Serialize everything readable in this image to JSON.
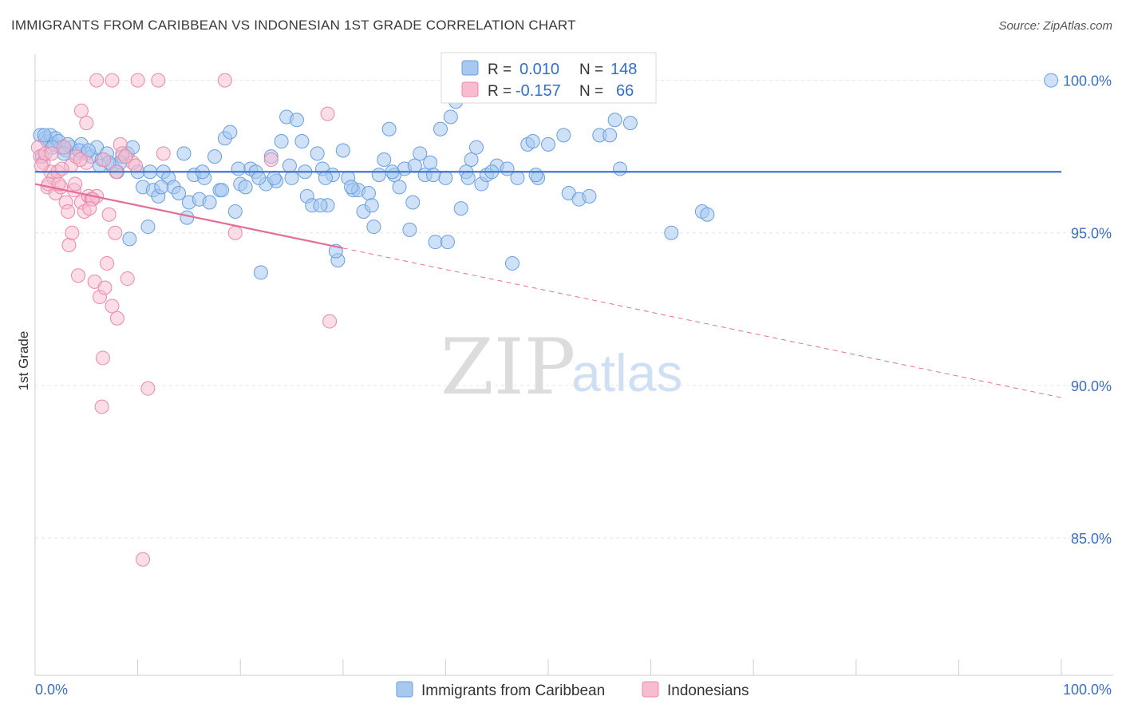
{
  "title": "IMMIGRANTS FROM CARIBBEAN VS INDONESIAN 1ST GRADE CORRELATION CHART",
  "source": "Source: ZipAtlas.com",
  "watermark": {
    "part1": "ZIP",
    "part2": "atlas"
  },
  "legend": {
    "r_label": "R =",
    "n_label": "N =",
    "rows": [
      {
        "r": "0.010",
        "n": "148",
        "color": "#a8c8f0",
        "stroke": "#6a9ee0"
      },
      {
        "r": "-0.157",
        "n": "66",
        "color": "#f8bcd0",
        "stroke": "#ec88a8"
      }
    ]
  },
  "colors": {
    "blue": "#3b78d8",
    "pink": "#e46c98",
    "grid": "#e6e6e6",
    "axis_text": "#3b6fc4"
  },
  "chart_data": {
    "type": "scatter",
    "title": "IMMIGRANTS FROM CARIBBEAN VS INDONESIAN 1ST GRADE CORRELATION CHART",
    "xlabel": "",
    "ylabel": "1st Grade",
    "xlim": [
      0,
      100
    ],
    "ylim": [
      80.5,
      100.8
    ],
    "x_tick_labels": [
      "0.0%",
      "100.0%"
    ],
    "y_ticks": [
      85,
      90,
      95,
      100
    ],
    "y_tick_labels": [
      "85.0%",
      "90.0%",
      "95.0%",
      "100.0%"
    ],
    "grid": true,
    "legend_placement": "top-center",
    "series": [
      {
        "name": "Immigrants from Caribbean",
        "color": "#a8c8f0",
        "trend": {
          "x": [
            0,
            100
          ],
          "y": [
            97.0,
            97.0
          ]
        },
        "points": [
          [
            0.5,
            98.2
          ],
          [
            1.0,
            98.1
          ],
          [
            1.2,
            98.0
          ],
          [
            1.5,
            98.2
          ],
          [
            1.8,
            97.9
          ],
          [
            2.0,
            98.1
          ],
          [
            2.5,
            97.8
          ],
          [
            3.0,
            97.7
          ],
          [
            3.5,
            97.8
          ],
          [
            4.0,
            97.6
          ],
          [
            4.5,
            97.9
          ],
          [
            5.0,
            97.6
          ],
          [
            5.5,
            97.5
          ],
          [
            6.0,
            97.8
          ],
          [
            6.5,
            97.4
          ],
          [
            7.0,
            97.6
          ],
          [
            7.5,
            97.2
          ],
          [
            8.0,
            97.0
          ],
          [
            8.5,
            97.5
          ],
          [
            9.0,
            97.6
          ],
          [
            9.5,
            97.8
          ],
          [
            10.0,
            97.0
          ],
          [
            10.5,
            96.5
          ],
          [
            11.0,
            95.2
          ],
          [
            11.5,
            96.4
          ],
          [
            12.0,
            96.2
          ],
          [
            12.5,
            97.0
          ],
          [
            13.0,
            96.8
          ],
          [
            13.5,
            96.5
          ],
          [
            14.0,
            96.3
          ],
          [
            14.5,
            97.6
          ],
          [
            15.0,
            96.0
          ],
          [
            15.5,
            96.9
          ],
          [
            16.0,
            96.1
          ],
          [
            16.5,
            96.8
          ],
          [
            17.0,
            96.0
          ],
          [
            17.5,
            97.5
          ],
          [
            18.0,
            96.4
          ],
          [
            18.5,
            98.1
          ],
          [
            19.0,
            98.3
          ],
          [
            19.5,
            95.7
          ],
          [
            20.0,
            96.6
          ],
          [
            20.5,
            96.5
          ],
          [
            21.0,
            97.1
          ],
          [
            21.5,
            97.0
          ],
          [
            22.0,
            93.7
          ],
          [
            22.5,
            96.6
          ],
          [
            23.0,
            97.5
          ],
          [
            23.5,
            96.7
          ],
          [
            24.0,
            98.0
          ],
          [
            24.5,
            98.8
          ],
          [
            25.0,
            96.8
          ],
          [
            25.5,
            98.7
          ],
          [
            26.0,
            98.0
          ],
          [
            26.5,
            96.2
          ],
          [
            27.0,
            95.9
          ],
          [
            27.5,
            97.6
          ],
          [
            28.0,
            97.1
          ],
          [
            28.5,
            95.9
          ],
          [
            29.0,
            96.9
          ],
          [
            29.5,
            94.1
          ],
          [
            30.0,
            97.7
          ],
          [
            30.5,
            96.8
          ],
          [
            31.0,
            96.4
          ],
          [
            31.5,
            96.4
          ],
          [
            32.0,
            95.7
          ],
          [
            32.5,
            96.3
          ],
          [
            33.0,
            95.2
          ],
          [
            33.5,
            96.9
          ],
          [
            34.0,
            97.4
          ],
          [
            34.5,
            98.4
          ],
          [
            35.0,
            96.9
          ],
          [
            35.5,
            96.5
          ],
          [
            36.0,
            97.1
          ],
          [
            36.5,
            95.1
          ],
          [
            37.0,
            97.2
          ],
          [
            37.5,
            97.6
          ],
          [
            38.0,
            96.9
          ],
          [
            38.5,
            97.3
          ],
          [
            39.0,
            94.7
          ],
          [
            39.5,
            98.4
          ],
          [
            40.0,
            96.8
          ],
          [
            40.5,
            98.8
          ],
          [
            41.0,
            99.3
          ],
          [
            41.5,
            95.8
          ],
          [
            42.0,
            97.0
          ],
          [
            42.5,
            97.4
          ],
          [
            43.0,
            97.8
          ],
          [
            43.5,
            96.6
          ],
          [
            44.0,
            96.9
          ],
          [
            45.0,
            97.2
          ],
          [
            46.0,
            97.1
          ],
          [
            47.0,
            96.8
          ],
          [
            48.0,
            97.9
          ],
          [
            48.5,
            98.0
          ],
          [
            49.0,
            96.8
          ],
          [
            50.0,
            97.9
          ],
          [
            50.5,
            100.0
          ],
          [
            52.0,
            96.3
          ],
          [
            53.0,
            96.1
          ],
          [
            55.0,
            98.2
          ],
          [
            56.0,
            98.2
          ],
          [
            57.0,
            97.1
          ],
          [
            58.0,
            98.6
          ],
          [
            62.0,
            95.0
          ],
          [
            65.0,
            95.7
          ],
          [
            65.5,
            95.6
          ],
          [
            99.0,
            100.0
          ],
          [
            0.7,
            97.5
          ],
          [
            2.3,
            98.0
          ],
          [
            3.2,
            97.9
          ],
          [
            4.3,
            97.7
          ],
          [
            6.3,
            97.2
          ],
          [
            8.3,
            97.3
          ],
          [
            9.2,
            94.8
          ],
          [
            12.3,
            96.5
          ],
          [
            14.8,
            95.5
          ],
          [
            16.3,
            97.0
          ],
          [
            18.2,
            96.4
          ],
          [
            19.8,
            97.1
          ],
          [
            21.8,
            96.8
          ],
          [
            23.3,
            96.8
          ],
          [
            24.8,
            97.2
          ],
          [
            26.3,
            97.0
          ],
          [
            27.8,
            95.9
          ],
          [
            28.3,
            96.8
          ],
          [
            29.3,
            94.4
          ],
          [
            30.8,
            96.5
          ],
          [
            32.8,
            95.9
          ],
          [
            34.8,
            97.0
          ],
          [
            36.8,
            96.0
          ],
          [
            38.8,
            96.9
          ],
          [
            40.2,
            94.7
          ],
          [
            42.2,
            96.8
          ],
          [
            44.5,
            97.0
          ],
          [
            46.5,
            94.0
          ],
          [
            48.8,
            96.9
          ],
          [
            51.5,
            98.2
          ],
          [
            54.0,
            96.2
          ],
          [
            56.5,
            98.7
          ],
          [
            0.9,
            98.2
          ],
          [
            1.7,
            97.8
          ],
          [
            2.8,
            97.6
          ],
          [
            5.2,
            97.7
          ],
          [
            7.2,
            97.3
          ],
          [
            11.2,
            97.0
          ]
        ]
      },
      {
        "name": "Indonesians",
        "color": "#f8bcd0",
        "trend": {
          "x": [
            0,
            30
          ],
          "y": [
            96.6,
            94.5
          ]
        },
        "trend_dashed": {
          "x": [
            30,
            100
          ],
          "y": [
            94.5,
            89.6
          ]
        },
        "points": [
          [
            0.3,
            97.8
          ],
          [
            0.5,
            97.5
          ],
          [
            0.8,
            97.3
          ],
          [
            1.0,
            97.6
          ],
          [
            1.2,
            96.5
          ],
          [
            1.5,
            97.0
          ],
          [
            1.8,
            96.8
          ],
          [
            2.0,
            96.3
          ],
          [
            2.2,
            97.0
          ],
          [
            2.5,
            96.5
          ],
          [
            2.8,
            97.8
          ],
          [
            3.0,
            96.0
          ],
          [
            3.2,
            95.7
          ],
          [
            3.5,
            97.2
          ],
          [
            3.8,
            96.4
          ],
          [
            4.0,
            97.5
          ],
          [
            4.2,
            93.6
          ],
          [
            4.5,
            96.0
          ],
          [
            4.8,
            95.7
          ],
          [
            5.0,
            97.3
          ],
          [
            5.2,
            96.2
          ],
          [
            5.5,
            96.1
          ],
          [
            5.8,
            93.4
          ],
          [
            6.0,
            96.2
          ],
          [
            6.3,
            92.9
          ],
          [
            6.6,
            90.9
          ],
          [
            6.8,
            93.2
          ],
          [
            7.0,
            94.0
          ],
          [
            7.2,
            95.6
          ],
          [
            7.5,
            92.6
          ],
          [
            7.8,
            95.0
          ],
          [
            8.0,
            92.2
          ],
          [
            8.3,
            97.9
          ],
          [
            8.5,
            97.6
          ],
          [
            9.0,
            93.5
          ],
          [
            9.5,
            97.3
          ],
          [
            10.0,
            100.0
          ],
          [
            10.5,
            84.3
          ],
          [
            11.0,
            89.9
          ],
          [
            12.0,
            100.0
          ],
          [
            12.5,
            97.6
          ],
          [
            18.5,
            100.0
          ],
          [
            19.5,
            95.0
          ],
          [
            23.0,
            97.4
          ],
          [
            28.5,
            98.9
          ],
          [
            28.7,
            92.1
          ],
          [
            6.0,
            100.0
          ],
          [
            7.5,
            100.0
          ],
          [
            4.5,
            99.0
          ],
          [
            5.0,
            98.6
          ],
          [
            3.3,
            94.6
          ],
          [
            3.6,
            95.0
          ],
          [
            6.5,
            89.3
          ],
          [
            1.3,
            96.6
          ],
          [
            2.6,
            97.1
          ],
          [
            4.4,
            97.4
          ],
          [
            5.6,
            96.1
          ],
          [
            7.9,
            97.0
          ],
          [
            9.8,
            97.2
          ],
          [
            0.6,
            97.2
          ],
          [
            1.6,
            97.6
          ],
          [
            2.3,
            96.6
          ],
          [
            3.9,
            96.6
          ],
          [
            5.3,
            95.8
          ],
          [
            8.8,
            97.5
          ],
          [
            6.7,
            97.4
          ]
        ]
      }
    ]
  }
}
